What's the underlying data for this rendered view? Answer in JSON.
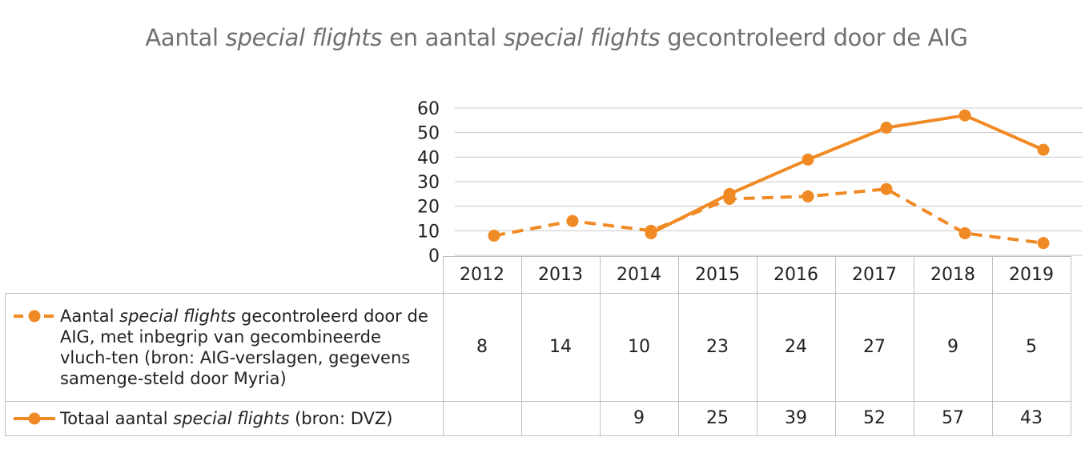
{
  "title": {
    "part1": "Aantal ",
    "italic1": "special flights",
    "part2": " en aantal ",
    "italic2": "special flights",
    "part3": " gecontroleerd door de AIG"
  },
  "chart_data": {
    "type": "line",
    "categories": [
      "2012",
      "2013",
      "2014",
      "2015",
      "2016",
      "2017",
      "2018",
      "2019"
    ],
    "ylim": [
      0,
      60
    ],
    "yticks": [
      0,
      10,
      20,
      30,
      40,
      50,
      60
    ],
    "grid": true,
    "legend_position": "table-left",
    "series": [
      {
        "name": "Aantal special flights gecontroleerd door de AIG, met inbegrip van gecombineerde vluchten (bron: AIG-verslagen, gegevens samengesteld door Myria)",
        "style": "dashed",
        "values": [
          8,
          14,
          10,
          23,
          24,
          27,
          9,
          5
        ]
      },
      {
        "name": "Totaal aantal special flights (bron: DVZ)",
        "style": "solid",
        "values": [
          null,
          null,
          9,
          25,
          39,
          52,
          57,
          43
        ]
      }
    ],
    "color": "#F08A24"
  },
  "table": {
    "row1_label": {
      "pre": "Aantal ",
      "italic": "special flights",
      "post": " gecontroleerd door de AIG, met inbegrip van gecombineerde vluch-ten (bron: AIG-verslagen, gegevens samenge-steld door Myria)"
    },
    "row2_label": {
      "pre": "Totaal aantal ",
      "italic": "special flights",
      "post": " (bron: DVZ)"
    },
    "row1_values": [
      "8",
      "14",
      "10",
      "23",
      "24",
      "27",
      "9",
      "5"
    ],
    "row2_values": [
      "",
      "",
      "9",
      "25",
      "39",
      "52",
      "57",
      "43"
    ]
  }
}
